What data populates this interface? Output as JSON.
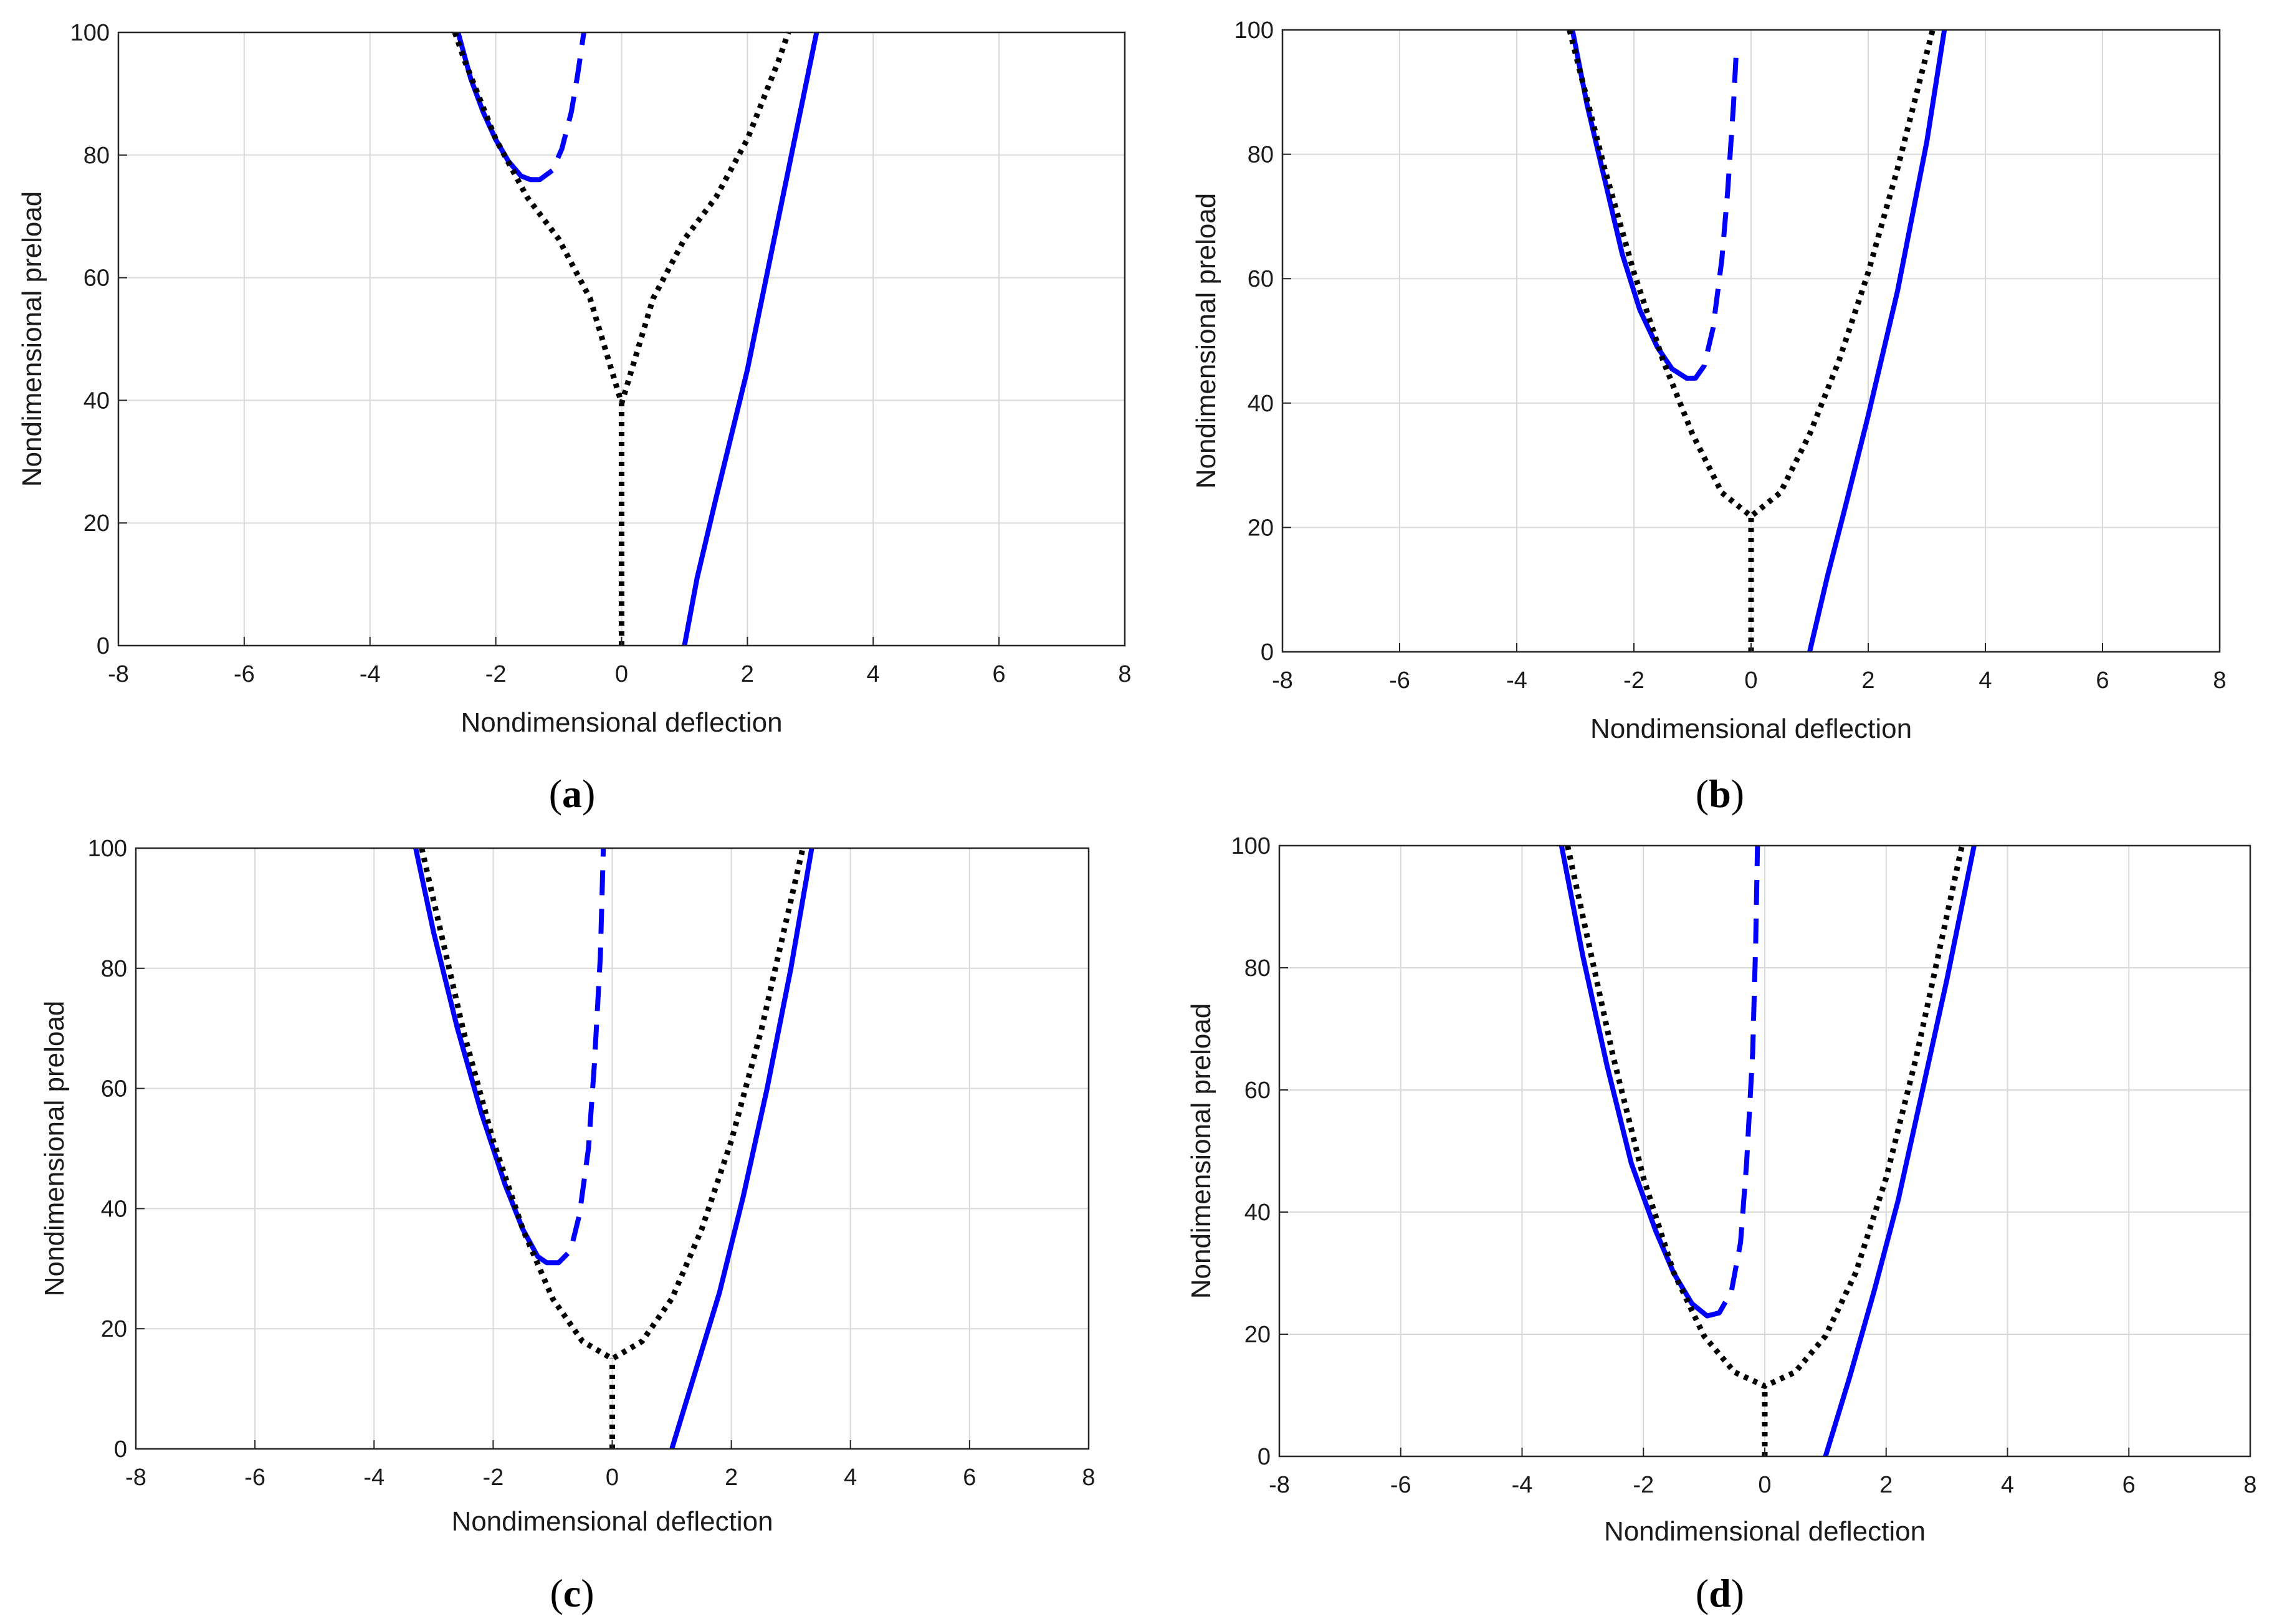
{
  "figure": {
    "panels_note": "Four panels (a)-(d): nondimensional preload vs nondimensional deflection",
    "colors": {
      "stable": "#0000ff",
      "unstable": "#0000ff",
      "reference": "#000000",
      "grid": "#d9d9d9"
    }
  },
  "chart_data": [
    {
      "type": "line",
      "label": "a",
      "xlabel": "Nondimensional deflection",
      "ylabel": "Nondimensional preload",
      "xlim": [
        -8,
        8
      ],
      "ylim": [
        0,
        100
      ],
      "xticks": [
        "-8",
        "-6",
        "-4",
        "-2",
        "0",
        "2",
        "4",
        "6",
        "8"
      ],
      "yticks": [
        "0",
        "20",
        "40",
        "60",
        "80",
        "100"
      ],
      "grid": true,
      "series": [
        {
          "name": "stable-left",
          "style": "solid",
          "color": "#0000ff",
          "x": [
            -2.6,
            -2.4,
            -2.2,
            -2.0,
            -1.8,
            -1.6,
            -1.45
          ],
          "y": [
            100,
            92.5,
            87,
            82.5,
            79,
            76.6,
            76
          ]
        },
        {
          "name": "unstable",
          "style": "dashed",
          "color": "#0000ff",
          "x": [
            -1.45,
            -1.3,
            -1.1,
            -0.95,
            -0.8,
            -0.7,
            -0.6
          ],
          "y": [
            76,
            76,
            77.5,
            81,
            87,
            93,
            100
          ]
        },
        {
          "name": "stable-right",
          "style": "solid",
          "color": "#0000ff",
          "x": [
            1.0,
            1.2,
            1.5,
            2.0,
            2.5,
            3.1
          ],
          "y": [
            0,
            11,
            24,
            45,
            70,
            100
          ]
        },
        {
          "name": "reference-parabola",
          "style": "dotted",
          "color": "#000000",
          "x": [
            -2.65,
            -2.5,
            -2.0,
            -1.5,
            -1.0,
            -0.5,
            0,
            0.5,
            1.0,
            1.5,
            2.0,
            2.5,
            2.65
          ],
          "y": [
            100,
            95.5,
            82.6,
            73.1,
            66.3,
            56.6,
            39.5,
            56.6,
            66.3,
            73.1,
            82.6,
            95.5,
            100
          ]
        },
        {
          "name": "reference-stem",
          "style": "dotted",
          "color": "#000000",
          "x": [
            0,
            0
          ],
          "y": [
            0,
            39.5
          ]
        }
      ]
    },
    {
      "type": "line",
      "label": "b",
      "xlabel": "Nondimensional deflection",
      "ylabel": "Nondimensional preload",
      "xlim": [
        -8,
        8
      ],
      "ylim": [
        0,
        100
      ],
      "xticks": [
        "-8",
        "-6",
        "-4",
        "-2",
        "0",
        "2",
        "4",
        "6",
        "8"
      ],
      "yticks": [
        "0",
        "20",
        "40",
        "60",
        "80",
        "100"
      ],
      "grid": true,
      "series": [
        {
          "name": "stable-left",
          "style": "solid",
          "color": "#0000ff",
          "x": [
            -3.05,
            -2.8,
            -2.5,
            -2.2,
            -1.9,
            -1.6,
            -1.35,
            -1.1
          ],
          "y": [
            100,
            88,
            76,
            64,
            55,
            49,
            45.5,
            44
          ]
        },
        {
          "name": "unstable",
          "style": "dashed",
          "color": "#0000ff",
          "x": [
            -1.1,
            -0.95,
            -0.8,
            -0.65,
            -0.5,
            -0.4,
            -0.3,
            -0.25
          ],
          "y": [
            44,
            44,
            46,
            52,
            63,
            74,
            88,
            97
          ]
        },
        {
          "name": "stable-right",
          "style": "solid",
          "color": "#0000ff",
          "x": [
            1.0,
            1.3,
            1.6,
            2.0,
            2.5,
            3.0,
            3.3
          ],
          "y": [
            0,
            12,
            23,
            38,
            58,
            82,
            100
          ]
        },
        {
          "name": "reference-parabola",
          "style": "dotted",
          "color": "#000000",
          "x": [
            -3.1,
            -2.5,
            -2.0,
            -1.5,
            -1.0,
            -0.5,
            0,
            0.5,
            1.0,
            1.5,
            2.0,
            2.5,
            3.1
          ],
          "y": [
            100,
            77.7,
            61.0,
            46.8,
            35.0,
            25.6,
            21.8,
            25.6,
            35.0,
            46.8,
            61.0,
            77.7,
            100
          ]
        },
        {
          "name": "reference-stem",
          "style": "dotted",
          "color": "#000000",
          "x": [
            0,
            0
          ],
          "y": [
            0,
            21.8
          ]
        }
      ]
    },
    {
      "type": "line",
      "label": "c",
      "xlabel": "Nondimensional deflection",
      "ylabel": "Nondimensional preload",
      "xlim": [
        -8,
        8
      ],
      "ylim": [
        0,
        100
      ],
      "xticks": [
        "-8",
        "-6",
        "-4",
        "-2",
        "0",
        "2",
        "4",
        "6",
        "8"
      ],
      "yticks": [
        "0",
        "20",
        "40",
        "60",
        "80",
        "100"
      ],
      "grid": true,
      "series": [
        {
          "name": "stable-left",
          "style": "solid",
          "color": "#0000ff",
          "x": [
            -3.3,
            -3.0,
            -2.6,
            -2.2,
            -1.8,
            -1.5,
            -1.25,
            -1.1
          ],
          "y": [
            100,
            86,
            70,
            56,
            44,
            36.5,
            32,
            31
          ]
        },
        {
          "name": "unstable",
          "style": "dashed",
          "color": "#0000ff",
          "x": [
            -1.1,
            -0.9,
            -0.7,
            -0.55,
            -0.4,
            -0.3,
            -0.2,
            -0.15
          ],
          "y": [
            31,
            31,
            33,
            39,
            50,
            64,
            82,
            100
          ]
        },
        {
          "name": "stable-right",
          "style": "solid",
          "color": "#0000ff",
          "x": [
            1.0,
            1.4,
            1.8,
            2.2,
            2.6,
            3.0,
            3.35
          ],
          "y": [
            0,
            13,
            26,
            42,
            60,
            80,
            100
          ]
        },
        {
          "name": "reference-parabola",
          "style": "dotted",
          "color": "#000000",
          "x": [
            -3.2,
            -2.5,
            -2.0,
            -1.5,
            -1.0,
            -0.5,
            0,
            0.5,
            1.0,
            1.5,
            2.0,
            2.5,
            3.2
          ],
          "y": [
            100,
            69.6,
            51.3,
            36.5,
            25.0,
            17.9,
            15.0,
            17.9,
            25.0,
            36.5,
            51.3,
            69.6,
            100
          ]
        },
        {
          "name": "reference-stem",
          "style": "dotted",
          "color": "#000000",
          "x": [
            0,
            0
          ],
          "y": [
            0,
            15.0
          ]
        }
      ]
    },
    {
      "type": "line",
      "label": "d",
      "xlabel": "Nondimensional deflection",
      "ylabel": "Nondimensional preload",
      "xlim": [
        -8,
        8
      ],
      "ylim": [
        0,
        100
      ],
      "xticks": [
        "-8",
        "-6",
        "-4",
        "-2",
        "0",
        "2",
        "4",
        "6",
        "8"
      ],
      "yticks": [
        "0",
        "20",
        "40",
        "60",
        "80",
        "100"
      ],
      "grid": true,
      "series": [
        {
          "name": "stable-left",
          "style": "solid",
          "color": "#0000ff",
          "x": [
            -3.35,
            -3.0,
            -2.6,
            -2.2,
            -1.8,
            -1.5,
            -1.2,
            -0.95
          ],
          "y": [
            100,
            82,
            64,
            48,
            37,
            30,
            25,
            23
          ]
        },
        {
          "name": "unstable",
          "style": "dashed",
          "color": "#0000ff",
          "x": [
            -0.95,
            -0.75,
            -0.55,
            -0.4,
            -0.3,
            -0.2,
            -0.15,
            -0.12
          ],
          "y": [
            23,
            23.5,
            27,
            35,
            48,
            66,
            84,
            100
          ]
        },
        {
          "name": "stable-right",
          "style": "solid",
          "color": "#0000ff",
          "x": [
            1.0,
            1.4,
            1.8,
            2.2,
            2.6,
            3.0,
            3.45
          ],
          "y": [
            0,
            13,
            27,
            42,
            60,
            78,
            100
          ]
        },
        {
          "name": "reference-parabola",
          "style": "dotted",
          "color": "#000000",
          "x": [
            -3.25,
            -2.5,
            -2.0,
            -1.5,
            -1.0,
            -0.5,
            0,
            0.5,
            1.0,
            1.5,
            2.0,
            2.5,
            3.25
          ],
          "y": [
            100,
            65.5,
            45.6,
            30.1,
            19.7,
            13.8,
            11.5,
            13.8,
            19.7,
            30.1,
            45.6,
            65.5,
            100
          ]
        },
        {
          "name": "reference-stem",
          "style": "dotted",
          "color": "#000000",
          "x": [
            0,
            0
          ],
          "y": [
            0,
            11.5
          ]
        }
      ]
    }
  ]
}
